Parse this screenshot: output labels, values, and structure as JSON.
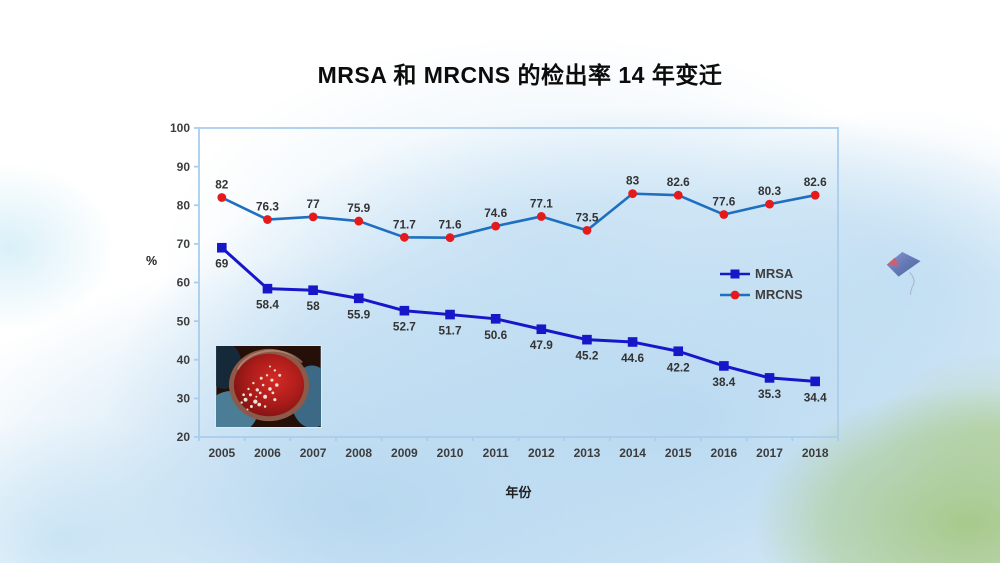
{
  "chart_data": {
    "type": "line",
    "title": "MRSA 和 MRCNS 的检出率 14 年变迁",
    "xlabel": "年份",
    "ylabel": "%",
    "ylim": [
      20,
      100
    ],
    "ytick_step": 10,
    "grid": false,
    "legend_position": "center-right-inside",
    "axis_color": "#a9cdec",
    "tick_label_color": "#3d3d3d",
    "data_label_color": "#333333",
    "categories": [
      "2005",
      "2006",
      "2007",
      "2008",
      "2009",
      "2010",
      "2011",
      "2012",
      "2013",
      "2014",
      "2015",
      "2016",
      "2017",
      "2018"
    ],
    "series": [
      {
        "name": "MRSA",
        "marker": "square",
        "line_color": "#1717c9",
        "marker_color": "#1717c9",
        "line_width": 3,
        "label_position": "below",
        "values": [
          69,
          58.4,
          58,
          55.9,
          52.7,
          51.7,
          50.6,
          47.9,
          45.2,
          44.6,
          42.2,
          38.4,
          35.3,
          34.4
        ]
      },
      {
        "name": "MRCNS",
        "marker": "circle",
        "line_color": "#1e6fc0",
        "marker_color": "#e51a1a",
        "line_width": 2.6,
        "label_position": "above",
        "values": [
          82,
          76.3,
          77,
          75.9,
          71.7,
          71.6,
          74.6,
          77.1,
          73.5,
          83,
          82.6,
          77.6,
          80.3,
          82.6
        ]
      }
    ]
  },
  "decorations": {
    "petri_dish_alt": "blood agar plate with white bacterial colonies held by gloved hands",
    "kite_alt": "small kite with tail"
  }
}
